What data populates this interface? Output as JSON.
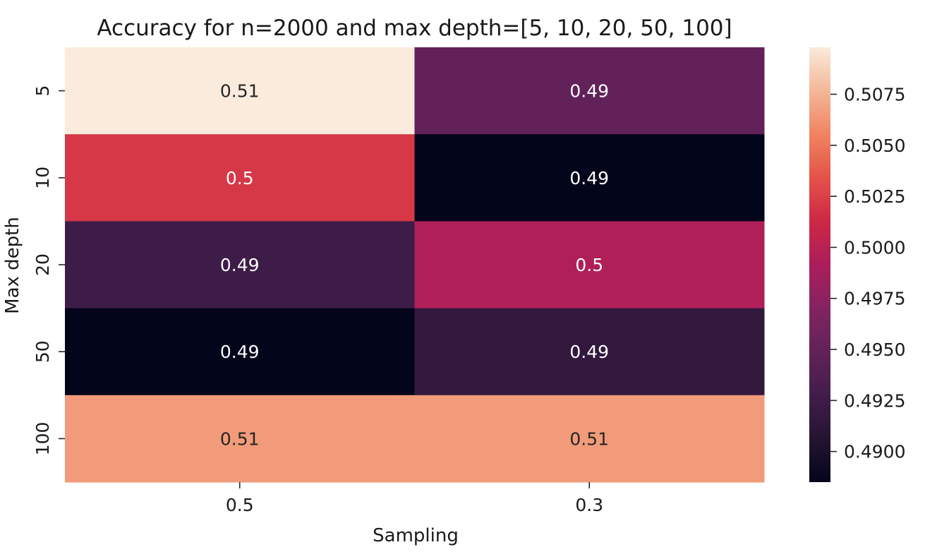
{
  "chart_data": {
    "type": "heatmap",
    "title": "Accuracy for n=2000 and max depth=[5, 10, 20, 50, 100]",
    "xlabel": "Sampling",
    "ylabel": "Max depth",
    "x_categories": [
      "0.5",
      "0.3"
    ],
    "y_categories": [
      "5",
      "10",
      "20",
      "50",
      "100"
    ],
    "values": [
      [
        0.5098,
        0.4949
      ],
      [
        0.5021,
        0.4885
      ],
      [
        0.4925,
        0.4995
      ],
      [
        0.4885,
        0.4916
      ],
      [
        0.5065,
        0.5065
      ]
    ],
    "annotations": [
      [
        "0.51",
        "0.49"
      ],
      [
        "0.5",
        "0.49"
      ],
      [
        "0.49",
        "0.5"
      ],
      [
        "0.49",
        "0.49"
      ],
      [
        "0.51",
        "0.51"
      ]
    ],
    "colormap": "rocket",
    "colorbar": {
      "vmin": 0.4885,
      "vmax": 0.5098,
      "ticks": [
        0.49,
        0.4925,
        0.495,
        0.4975,
        0.5,
        0.5025,
        0.505,
        0.5075
      ],
      "tick_labels": [
        "0.4900",
        "0.4925",
        "0.4950",
        "0.4975",
        "0.5000",
        "0.5025",
        "0.5050",
        "0.5075"
      ]
    }
  }
}
